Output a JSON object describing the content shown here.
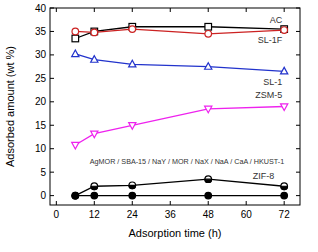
{
  "chart_data": {
    "type": "line",
    "x_label": "Adsorption time (h)",
    "y_label": "Adsorbed amount (wt %)",
    "x": [
      6,
      12,
      24,
      48,
      72
    ],
    "xlim": [
      -2,
      77
    ],
    "xticks": [
      0,
      12,
      24,
      36,
      48,
      60,
      72
    ],
    "ylim": [
      -2,
      40
    ],
    "yticks": [
      0,
      5,
      10,
      15,
      20,
      25,
      30,
      35,
      40
    ],
    "grid": false,
    "series": [
      {
        "name": "AC",
        "color": "#000000",
        "marker": "open-square",
        "values": [
          33.5,
          35,
          36,
          36,
          35.5
        ]
      },
      {
        "name": "SL-1F",
        "color": "#cc2222",
        "marker": "open-circle",
        "values": [
          35,
          34.8,
          35.5,
          34.5,
          35.3
        ]
      },
      {
        "name": "SL-1",
        "color": "#2233cc",
        "marker": "open-triangle",
        "values": [
          30.2,
          29,
          28,
          27.5,
          26.5
        ]
      },
      {
        "name": "ZSM-5",
        "color": "#ee22ee",
        "marker": "open-triangle-down",
        "values": [
          10.8,
          13.2,
          15,
          18.5,
          19
        ]
      },
      {
        "name": "ZIF-8",
        "color": "#000000",
        "marker": "half-filled-circle",
        "values": [
          0,
          2,
          2.2,
          3.5,
          2
        ]
      },
      {
        "name": "AgMOR / SBA-15 / NaY / MOR / NaX / NaA / CaA / HKUST-1",
        "color": "#000000",
        "marker": "filled-circle",
        "values": [
          0,
          0,
          0,
          0,
          0
        ]
      }
    ]
  }
}
